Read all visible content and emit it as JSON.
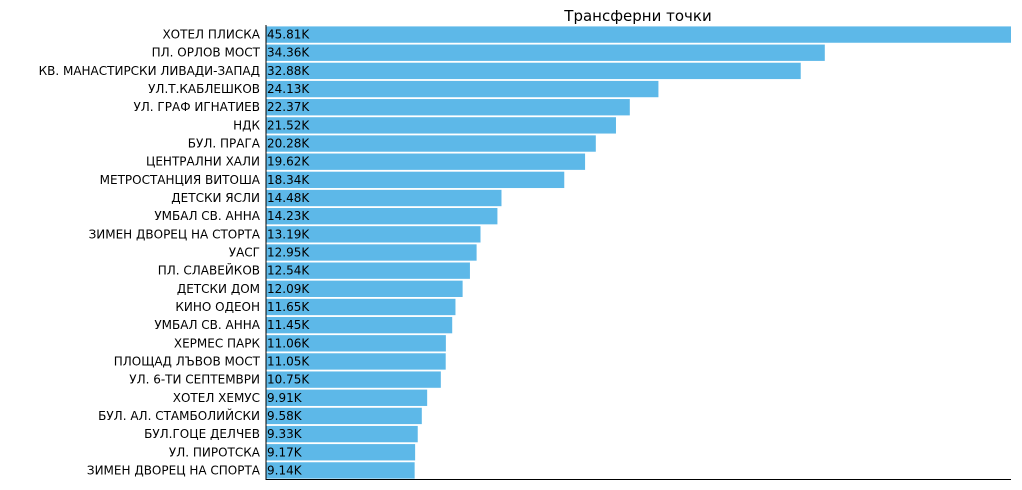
{
  "chart_data": {
    "type": "bar",
    "orientation": "horizontal",
    "title": "Трансферни точки",
    "xlabel": "",
    "ylabel": "",
    "xlim": [
      0,
      45.81
    ],
    "grid": false,
    "bar_color": "#5DB8E8",
    "categories": [
      "ХОТЕЛ ПЛИСКА",
      "ПЛ. ОРЛОВ МОСТ",
      "КВ. МАНАСТИРСКИ ЛИВАДИ-ЗАПАД",
      "УЛ.Т.КАБЛЕШКОВ",
      "УЛ. ГРАФ ИГНАТИЕВ",
      "НДК",
      "БУЛ. ПРАГА",
      "ЦЕНТРАЛНИ ХАЛИ",
      "МЕТРОСТАНЦИЯ ВИТОША",
      "ДЕТСКИ ЯСЛИ",
      "УМБАЛ СВ. АННА ",
      "ЗИМЕН ДВОРЕЦ НА СТОРТА",
      "УАСГ",
      "ПЛ. СЛАВЕЙКОВ",
      "ДЕТСКИ ДОМ",
      "КИНО ОДЕОН",
      "УМБАЛ СВ. АННА",
      "ХЕРМЕС ПАРК",
      "ПЛОЩАД ЛЪВОВ МОСТ",
      "УЛ. 6-ТИ СЕПТЕМВРИ",
      "ХОТЕЛ ХЕМУС",
      "БУЛ. АЛ. СТАМБОЛИЙСКИ",
      "БУЛ.ГОЦЕ ДЕЛЧЕВ",
      "УЛ. ПИРОТСКА",
      "ЗИМЕН ДВОРЕЦ НА СПОРТА"
    ],
    "values": [
      45.81,
      34.36,
      32.88,
      24.13,
      22.37,
      21.52,
      20.28,
      19.62,
      18.34,
      14.48,
      14.23,
      13.19,
      12.95,
      12.54,
      12.09,
      11.65,
      11.45,
      11.06,
      11.05,
      10.75,
      9.91,
      9.58,
      9.33,
      9.17,
      9.14
    ],
    "value_labels": [
      "45.81K",
      "34.36K",
      "32.88K",
      "24.13K",
      "22.37K",
      "21.52K",
      "20.28K",
      "19.62K",
      "18.34K",
      "14.48K",
      "14.23K",
      "13.19K",
      "12.95K",
      "12.54K",
      "12.09K",
      "11.65K",
      "11.45K",
      "11.06K",
      "11.05K",
      "10.75K",
      "9.91K",
      "9.58K",
      "9.33K",
      "9.17K",
      "9.14K"
    ]
  }
}
